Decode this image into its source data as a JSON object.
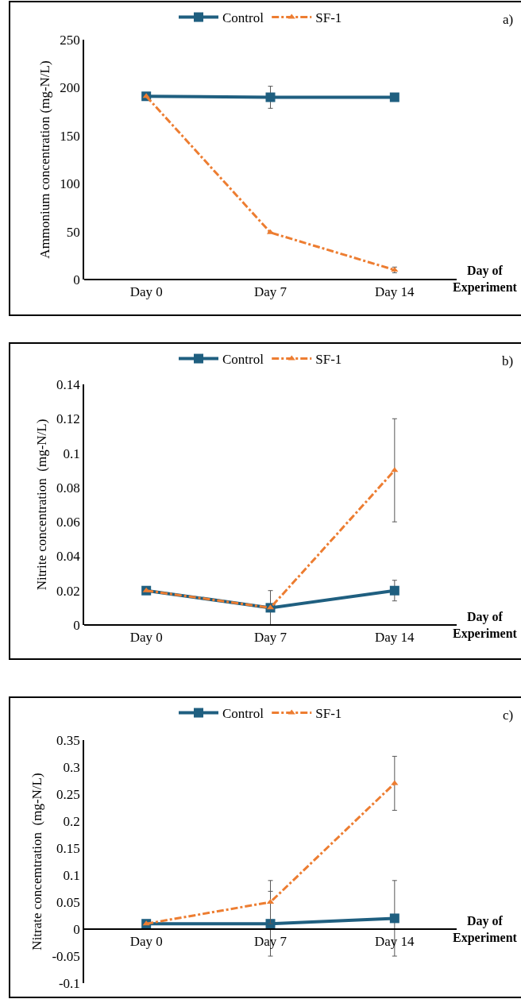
{
  "chart_data": [
    {
      "type": "line",
      "ylabel": "Ammonium concentration (mg-N/L)",
      "xlabel": "Day of Experiment",
      "annotations": [
        "a)"
      ],
      "categories": [
        "Day 0",
        "Day 7",
        "Day 14"
      ],
      "ylim": [
        0,
        250
      ],
      "yticks": [
        0,
        50,
        100,
        150,
        200,
        250
      ],
      "legend": "top",
      "series": [
        {
          "name": "Control",
          "color": "#1f5f80",
          "marker": "square",
          "line_style": "solid",
          "values": [
            191,
            190,
            190
          ],
          "errors": [
            null,
            11.5,
            null
          ]
        },
        {
          "name": "SF-1",
          "color": "#ed7d31",
          "marker": "triangle",
          "line_style": "dashed",
          "values": [
            191,
            49,
            10
          ],
          "errors": [
            null,
            null,
            3
          ]
        }
      ]
    },
    {
      "type": "line",
      "ylabel": "Nitrite concentration  (mg-N/L)",
      "xlabel": "Day of Experiment",
      "annotations": [
        "b)"
      ],
      "categories": [
        "Day 0",
        "Day 7",
        "Day 14"
      ],
      "ylim": [
        0,
        0.14
      ],
      "yticks": [
        0,
        0.02,
        0.04,
        0.06,
        0.08,
        0.1,
        0.12,
        0.14
      ],
      "legend": "top",
      "series": [
        {
          "name": "Control",
          "color": "#1f5f80",
          "marker": "square",
          "line_style": "solid",
          "values": [
            0.02,
            0.01,
            0.02
          ],
          "errors": [
            null,
            0.01,
            0.006
          ]
        },
        {
          "name": "SF-1",
          "color": "#ed7d31",
          "marker": "triangle",
          "line_style": "dashed",
          "values": [
            0.02,
            0.01,
            0.09
          ],
          "errors": [
            null,
            null,
            0.03
          ]
        }
      ]
    },
    {
      "type": "line",
      "ylabel": "Nitrate concemtration  (mg-N/L)",
      "xlabel": "Day of Experiment",
      "annotations": [
        "c)"
      ],
      "categories": [
        "Day 0",
        "Day 7",
        "Day 14"
      ],
      "ylim": [
        -0.1,
        0.35
      ],
      "yticks": [
        -0.1,
        -0.05,
        0,
        0.05,
        0.1,
        0.15,
        0.2,
        0.25,
        0.3,
        0.35
      ],
      "legend": "top",
      "series": [
        {
          "name": "Control",
          "color": "#1f5f80",
          "marker": "square",
          "line_style": "solid",
          "values": [
            0.01,
            0.01,
            0.02
          ],
          "errors": [
            null,
            0.06,
            0.07
          ]
        },
        {
          "name": "SF-1",
          "color": "#ed7d31",
          "marker": "triangle",
          "line_style": "dashed",
          "values": [
            0.01,
            0.05,
            0.27
          ],
          "errors": [
            null,
            0.04,
            0.05
          ]
        }
      ]
    }
  ]
}
